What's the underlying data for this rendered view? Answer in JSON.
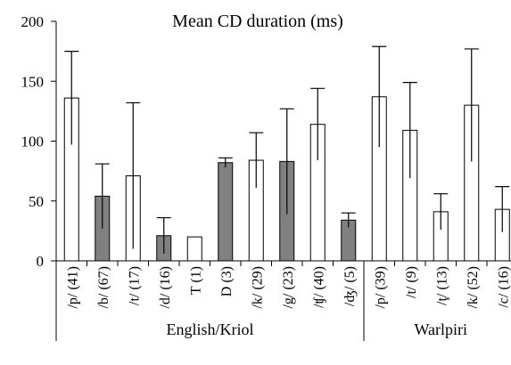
{
  "chart_data": {
    "type": "bar",
    "title": "Mean CD duration (ms)",
    "ylim": [
      0,
      200
    ],
    "y_ticks": [
      0,
      50,
      100,
      150,
      200
    ],
    "grid": false,
    "groups": [
      {
        "name": "English/Kriol",
        "count": 10
      },
      {
        "name": "Warlpiri",
        "count": 5
      }
    ],
    "categories": [
      "/p/ (41)",
      "/b/ (67)",
      "/t/ (17)",
      "/d/ (16)",
      "T (1)",
      "D (3)",
      "/k/ (29)",
      "/g/ (23)",
      "/ʧ/ (40)",
      "/ʤ/ (5)",
      "/p/ (39)",
      "/t/ (9)",
      "/ţ/ (13)",
      "/k/ (52)",
      "/c/ (16)"
    ],
    "values": [
      136,
      54,
      71,
      21,
      20,
      82,
      84,
      83,
      114,
      34,
      137,
      109,
      41,
      130,
      43
    ],
    "error_plus": [
      39,
      27,
      61,
      15,
      0,
      4,
      23,
      44,
      30,
      6,
      42,
      40,
      15,
      47,
      19
    ],
    "error_minus": [
      39,
      27,
      61,
      15,
      0,
      4,
      23,
      44,
      30,
      6,
      42,
      40,
      15,
      47,
      19
    ],
    "voiced": [
      false,
      true,
      false,
      true,
      false,
      true,
      false,
      true,
      false,
      true,
      false,
      false,
      false,
      false,
      false
    ],
    "colors": {
      "voiced": "#808080",
      "voiceless": "#ffffff",
      "stroke": "#000000"
    }
  }
}
